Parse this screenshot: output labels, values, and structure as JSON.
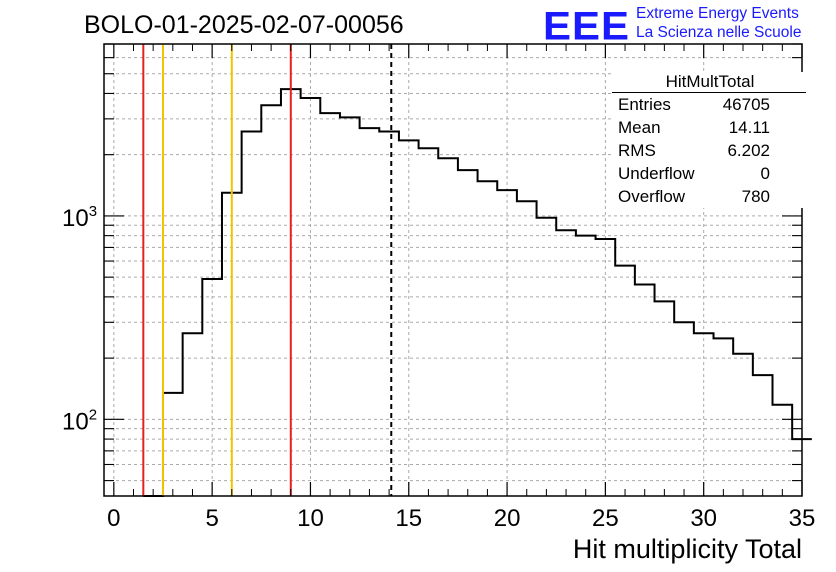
{
  "title": "BOLO-01-2025-02-07-00056",
  "logo": {
    "mark": "EEE",
    "line1": "Extreme Energy Events",
    "line2": "La Scienza nelle Scuole",
    "color": "#1a1aff"
  },
  "stats": {
    "name": "HitMultTotal",
    "rows": [
      {
        "label": "Entries",
        "value": "46705"
      },
      {
        "label": "Mean",
        "value": "14.11"
      },
      {
        "label": "RMS",
        "value": "6.202"
      },
      {
        "label": "Underflow",
        "value": "0"
      },
      {
        "label": "Overflow",
        "value": "780"
      }
    ]
  },
  "chart_data": {
    "type": "histogram",
    "xlabel": "Hit multiplicity Total",
    "ylabel": "",
    "xlim": [
      -0.5,
      35
    ],
    "ylim": [
      42,
      7000
    ],
    "yscale": "log",
    "grid": true,
    "xticks": [
      0,
      5,
      10,
      15,
      20,
      25,
      30,
      35
    ],
    "ytick_labels": [
      {
        "value": 100,
        "base": "10",
        "exp": "2"
      },
      {
        "value": 1000,
        "base": "10",
        "exp": "3"
      }
    ],
    "bin_width": 1,
    "bins": [
      {
        "x": 2,
        "y": 0
      },
      {
        "x": 3,
        "y": 135
      },
      {
        "x": 4,
        "y": 265
      },
      {
        "x": 5,
        "y": 490
      },
      {
        "x": 6,
        "y": 1300
      },
      {
        "x": 7,
        "y": 2600
      },
      {
        "x": 8,
        "y": 3500
      },
      {
        "x": 9,
        "y": 4200
      },
      {
        "x": 10,
        "y": 3800
      },
      {
        "x": 11,
        "y": 3200
      },
      {
        "x": 12,
        "y": 3050
      },
      {
        "x": 13,
        "y": 2700
      },
      {
        "x": 14,
        "y": 2600
      },
      {
        "x": 15,
        "y": 2350
      },
      {
        "x": 16,
        "y": 2150
      },
      {
        "x": 17,
        "y": 1920
      },
      {
        "x": 18,
        "y": 1680
      },
      {
        "x": 19,
        "y": 1480
      },
      {
        "x": 20,
        "y": 1340
      },
      {
        "x": 21,
        "y": 1180
      },
      {
        "x": 22,
        "y": 980
      },
      {
        "x": 23,
        "y": 850
      },
      {
        "x": 24,
        "y": 800
      },
      {
        "x": 25,
        "y": 770
      },
      {
        "x": 26,
        "y": 570
      },
      {
        "x": 27,
        "y": 460
      },
      {
        "x": 28,
        "y": 380
      },
      {
        "x": 29,
        "y": 300
      },
      {
        "x": 30,
        "y": 265
      },
      {
        "x": 31,
        "y": 250
      },
      {
        "x": 32,
        "y": 210
      },
      {
        "x": 33,
        "y": 165
      },
      {
        "x": 34,
        "y": 118
      },
      {
        "x": 35,
        "y": 80
      }
    ],
    "vertical_lines": [
      {
        "x": 1.5,
        "color": "#e8201c",
        "style": "solid"
      },
      {
        "x": 2.5,
        "color": "#f2c400",
        "style": "solid"
      },
      {
        "x": 6.0,
        "color": "#f2c400",
        "style": "solid"
      },
      {
        "x": 9.0,
        "color": "#e8201c",
        "style": "solid"
      },
      {
        "x": 14.11,
        "color": "#000000",
        "style": "dashed"
      }
    ]
  }
}
